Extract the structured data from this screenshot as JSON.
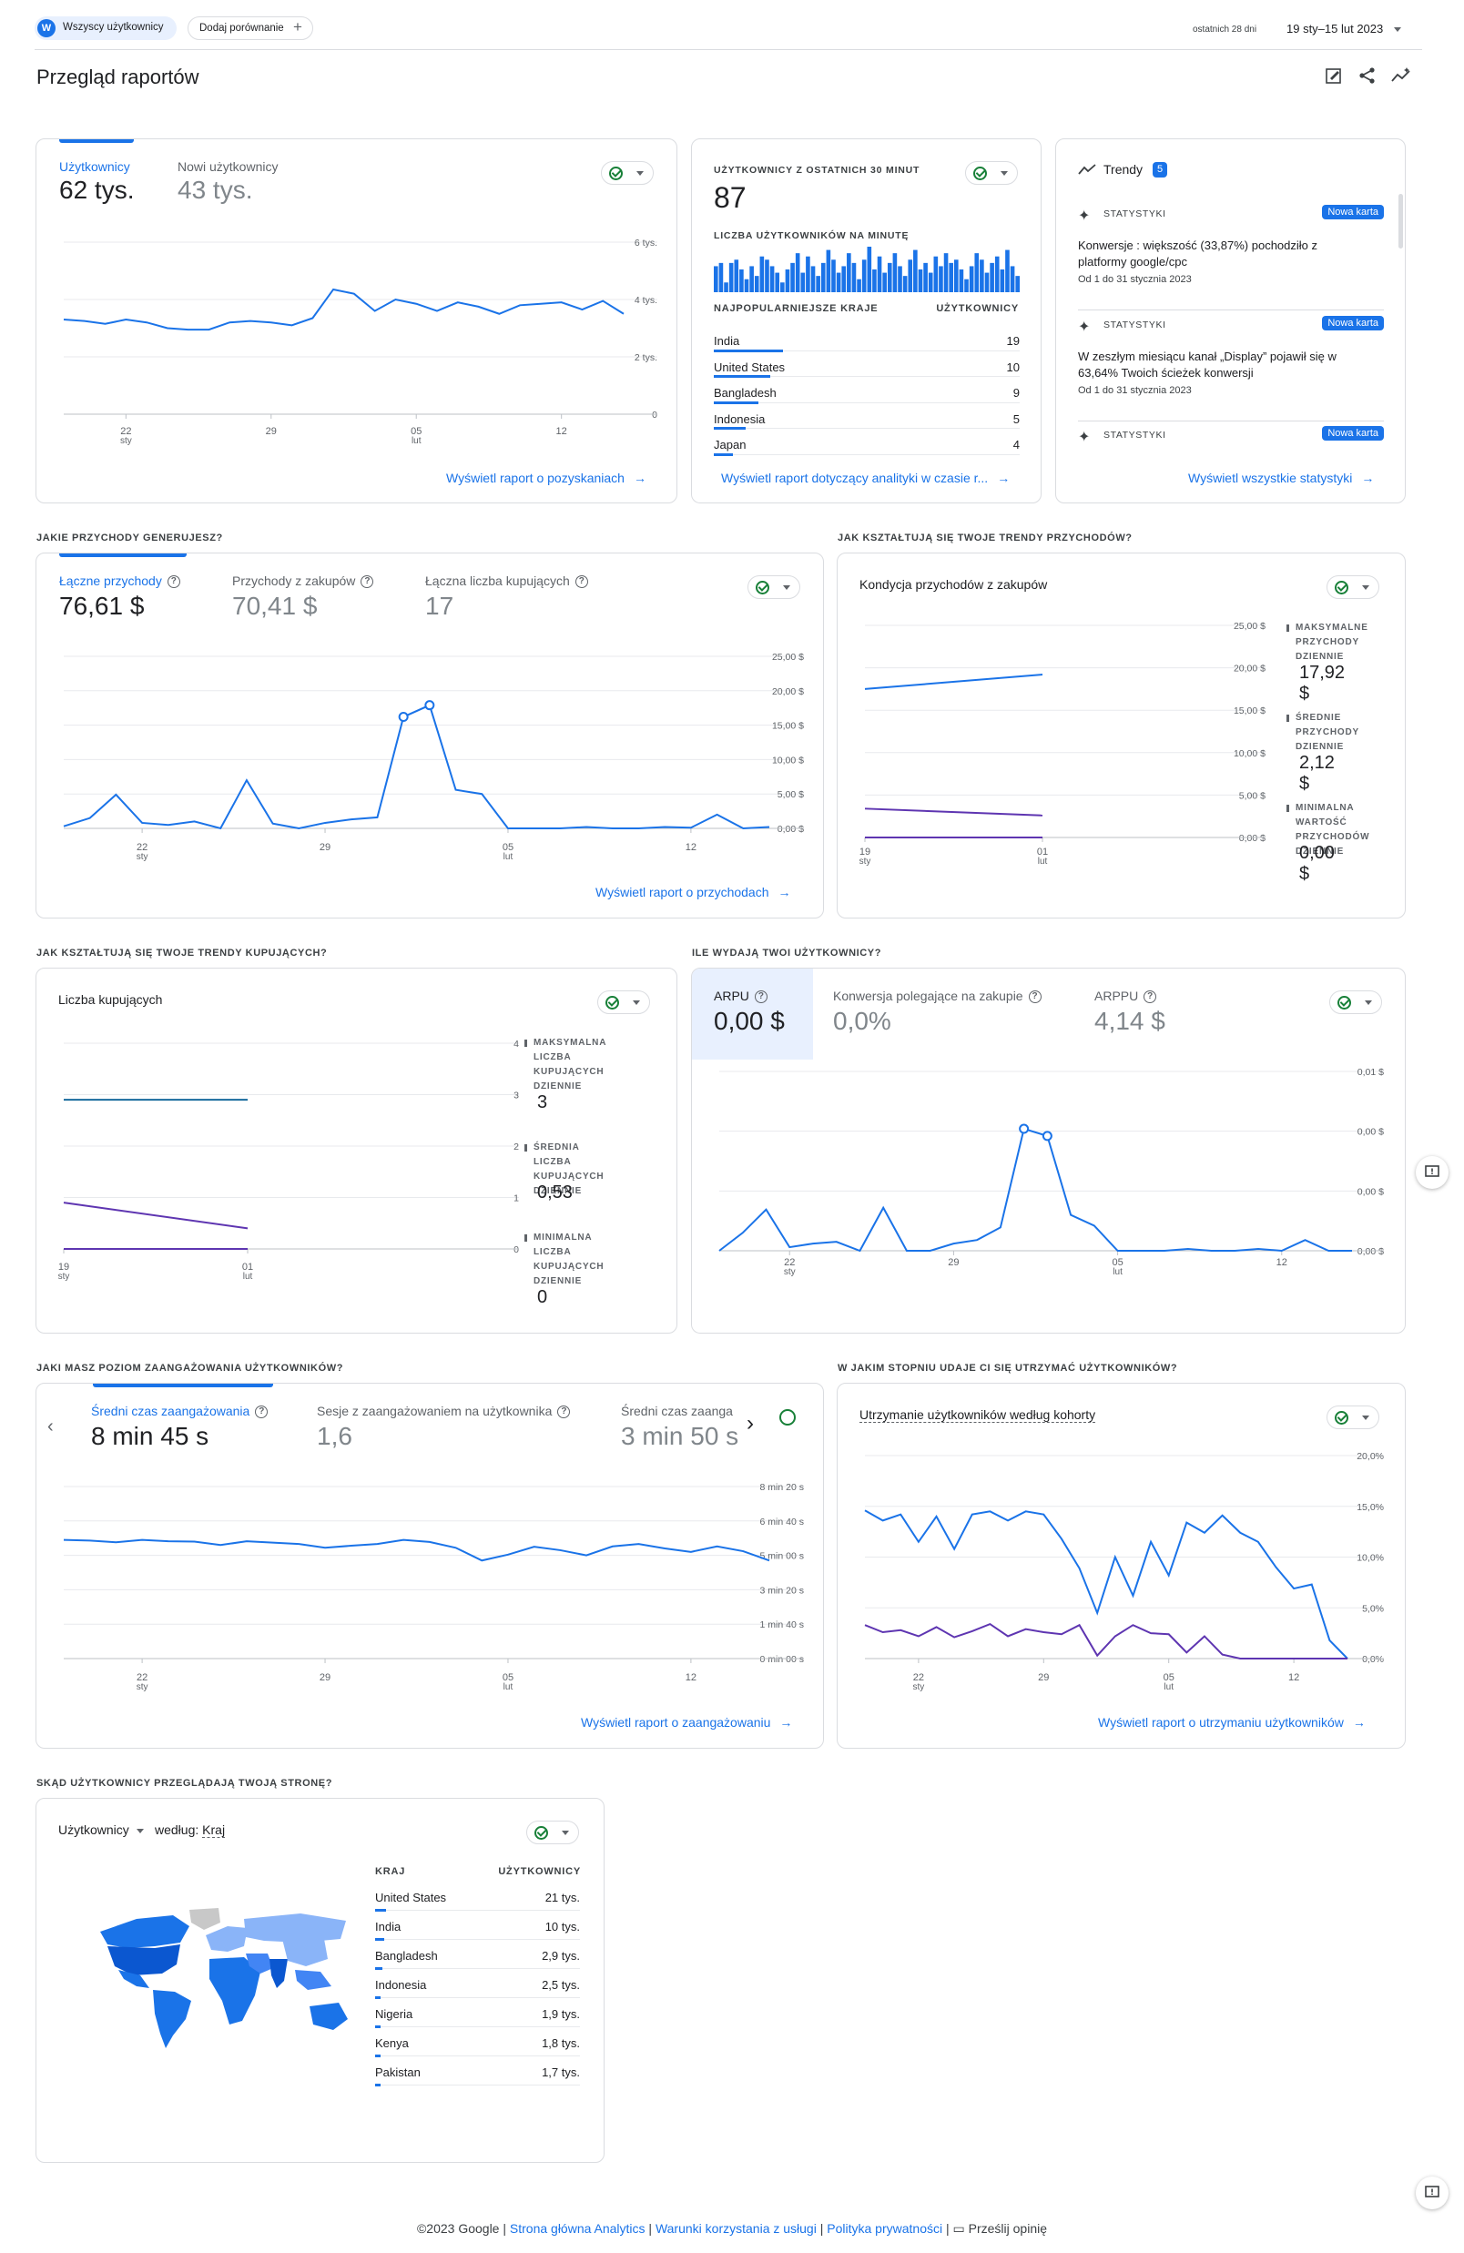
{
  "header": {
    "segment_avatar": "W",
    "segment_label": "Wszyscy użytkownicy",
    "compare_label": "Dodaj porównanie",
    "date_prefix": "ostatnich 28 dni",
    "date_range": "19 sty–15 lut 2023",
    "page_title": "Przegląd raportów",
    "icons": [
      "edit-report-icon",
      "share-icon",
      "insights-icon"
    ]
  },
  "acquisition": {
    "metrics": [
      {
        "label": "Użytkownicy",
        "value": "62 tys."
      },
      {
        "label": "Nowi użytkownicy",
        "value": "43 tys."
      }
    ],
    "y_ticks": [
      "6 tys.",
      "4 tys.",
      "2 tys.",
      "0"
    ],
    "x_ticks": [
      {
        "d": "22",
        "m": "sty"
      },
      {
        "d": "29",
        "m": ""
      },
      {
        "d": "05",
        "m": "lut"
      },
      {
        "d": "12",
        "m": ""
      }
    ],
    "link": "Wyświetl raport o pozyskaniach"
  },
  "realtime": {
    "title": "UŻYTKOWNICY Z OSTATNICH 30 MINUT",
    "value": "87",
    "per_minute_label": "LICZBA UŻYTKOWNIKÓW NA MINUTĘ",
    "col_country": "NAJPOPULARNIEJSZE KRAJE",
    "col_users": "UŻYTKOWNICY",
    "rows": [
      {
        "country": "India",
        "users": "19"
      },
      {
        "country": "United States",
        "users": "10"
      },
      {
        "country": "Bangladesh",
        "users": "9"
      },
      {
        "country": "Indonesia",
        "users": "5"
      },
      {
        "country": "Japan",
        "users": "4"
      }
    ],
    "link": "Wyświetl raport dotyczący analityki w czasie r..."
  },
  "insights": {
    "title": "Trendy",
    "count": "5",
    "cards": [
      {
        "tag": "STATYSTYKI",
        "badge": "Nowa karta",
        "text": "Konwersje : większość (33,87%) pochodziło z platformy google/cpc",
        "date": "Od 1 do 31 stycznia 2023"
      },
      {
        "tag": "STATYSTYKI",
        "badge": "Nowa karta",
        "text": "W zeszłym miesiącu kanał „Display” pojawił się w 63,64% Twoich ścieżek konwersji",
        "date": "Od 1 do 31 stycznia 2023"
      },
      {
        "tag": "STATYSTYKI",
        "badge": "Nowa karta",
        "text": "",
        "date": ""
      }
    ],
    "link": "Wyświetl wszystkie statystyki"
  },
  "revenue": {
    "section_title": "JAKIE PRZYCHODY GENERUJESZ?",
    "metrics": [
      {
        "label": "Łączne przychody",
        "value": "76,61 $"
      },
      {
        "label": "Przychody z zakupów",
        "value": "70,41 $"
      },
      {
        "label": "Łączna liczba kupujących",
        "value": "17"
      }
    ],
    "y_ticks": [
      "25,00 $",
      "20,00 $",
      "15,00 $",
      "10,00 $",
      "5,00 $",
      "0,00 $"
    ],
    "x_ticks": [
      {
        "d": "22",
        "m": "sty"
      },
      {
        "d": "29",
        "m": ""
      },
      {
        "d": "05",
        "m": "lut"
      },
      {
        "d": "12",
        "m": ""
      }
    ],
    "link": "Wyświetl raport o przychodach"
  },
  "revenue_trends": {
    "section_title": "JAK KSZTAŁTUJĄ SIĘ TWOJE TRENDY PRZYCHODÓW?",
    "chart_title": "Kondycja przychodów z zakupów",
    "y_ticks": [
      "25,00 $",
      "20,00 $",
      "15,00 $",
      "10,00 $",
      "5,00 $",
      "0,00 $"
    ],
    "x_ticks": [
      {
        "d": "19",
        "m": "sty"
      },
      {
        "d": "01",
        "m": "lut"
      }
    ],
    "stats": [
      {
        "label": "MAKSYMALNE PRZYCHODY DZIENNIE",
        "value": "17,92 $"
      },
      {
        "label": "ŚREDNIE PRZYCHODY DZIENNIE",
        "value": "2,12 $"
      },
      {
        "label": "MINIMALNA WARTOŚĆ PRZYCHODÓW DZIENNIE",
        "value": "0,00 $"
      }
    ]
  },
  "buyer_trends": {
    "section_title": "JAK KSZTAŁTUJĄ SIĘ TWOJE TRENDY KUPUJĄCYCH?",
    "chart_title": "Liczba kupujących",
    "y_ticks": [
      "4",
      "3",
      "2",
      "1",
      "0"
    ],
    "x_ticks": [
      {
        "d": "19",
        "m": "sty"
      },
      {
        "d": "01",
        "m": "lut"
      }
    ],
    "stats": [
      {
        "label": "MAKSYMALNA LICZBA KUPUJĄCYCH DZIENNIE",
        "value": "3"
      },
      {
        "label": "ŚREDNIA LICZBA KUPUJĄCYCH DZIENNIE",
        "value": "0,53"
      },
      {
        "label": "MINIMALNA LICZBA KUPUJĄCYCH DZIENNIE",
        "value": "0"
      }
    ]
  },
  "spend": {
    "section_title": "ILE WYDAJĄ TWOI UŻYTKOWNICY?",
    "metrics": [
      {
        "label": "ARPU",
        "value": "0,00 $"
      },
      {
        "label": "Konwersja polegające na zakupie",
        "value": "0,0%"
      },
      {
        "label": "ARPPU",
        "value": "4,14 $"
      }
    ],
    "y_ticks": [
      "0,01 $",
      "0,00 $",
      "0,00 $",
      "0,00 $"
    ],
    "x_ticks": [
      {
        "d": "22",
        "m": "sty"
      },
      {
        "d": "29",
        "m": ""
      },
      {
        "d": "05",
        "m": "lut"
      },
      {
        "d": "12",
        "m": ""
      }
    ]
  },
  "engagement": {
    "section_title": "JAKI MASZ POZIOM ZAANGAŻOWANIA UŻYTKOWNIKÓW?",
    "metrics": [
      {
        "label": "Średni czas zaangażowania",
        "value": "8 min 45 s"
      },
      {
        "label": "Sesje z zaangażowaniem na użytkownika",
        "value": "1,6"
      },
      {
        "label": "Średni czas zaanga",
        "value": "3 min 50 s"
      }
    ],
    "y_ticks": [
      "8 min 20 s",
      "6 min 40 s",
      "5 min 00 s",
      "3 min 20 s",
      "1 min 40 s",
      "0 min 00 s"
    ],
    "x_ticks": [
      {
        "d": "22",
        "m": "sty"
      },
      {
        "d": "29",
        "m": ""
      },
      {
        "d": "05",
        "m": "lut"
      },
      {
        "d": "12",
        "m": ""
      }
    ],
    "link": "Wyświetl raport o zaangażowaniu"
  },
  "retention": {
    "section_title": "W JAKIM STOPNIU UDAJE CI SIĘ UTRZYMAĆ UŻYTKOWNIKÓW?",
    "chart_title": "Utrzymanie użytkowników według kohorty",
    "y_ticks": [
      "20,0%",
      "15,0%",
      "10,0%",
      "5,0%",
      "0,0%"
    ],
    "x_ticks": [
      {
        "d": "22",
        "m": "sty"
      },
      {
        "d": "29",
        "m": ""
      },
      {
        "d": "05",
        "m": "lut"
      },
      {
        "d": "12",
        "m": ""
      }
    ],
    "link": "Wyświetl raport o utrzymaniu użytkowników"
  },
  "geo": {
    "section_title": "SKĄD UŻYTKOWNICY PRZEGLĄDAJĄ TWOJĄ STRONĘ?",
    "metric": "Użytkownicy",
    "by_label": "według:",
    "by_value": "Kraj",
    "col_country": "KRAJ",
    "col_users": "UŻYTKOWNICY",
    "rows": [
      {
        "country": "United States",
        "users": "21 tys."
      },
      {
        "country": "India",
        "users": "10 tys."
      },
      {
        "country": "Bangladesh",
        "users": "2,9 tys."
      },
      {
        "country": "Indonesia",
        "users": "2,5 tys."
      },
      {
        "country": "Nigeria",
        "users": "1,9 tys."
      },
      {
        "country": "Kenya",
        "users": "1,8 tys."
      },
      {
        "country": "Pakistan",
        "users": "1,7 tys."
      }
    ]
  },
  "footer": {
    "copyright": "©2023 Google",
    "links": [
      "Strona główna Analytics",
      "Warunki korzystania z usługi",
      "Polityka prywatności"
    ],
    "feedback": "Prześlij opinię"
  },
  "chart_data": [
    {
      "type": "line",
      "x": [
        "19 sty",
        "20 sty",
        "21 sty",
        "22 sty",
        "23 sty",
        "24 sty",
        "25 sty",
        "26 sty",
        "27 sty",
        "28 sty",
        "29 sty",
        "30 sty",
        "31 sty",
        "01 lut",
        "02 lut",
        "03 lut",
        "04 lut",
        "05 lut",
        "06 lut",
        "07 lut",
        "08 lut",
        "09 lut",
        "10 lut",
        "11 lut",
        "12 lut",
        "13 lut",
        "14 lut",
        "15 lut"
      ],
      "series": [
        {
          "name": "Użytkownicy",
          "values": [
            3300,
            3250,
            3150,
            3300,
            3200,
            3000,
            2950,
            2950,
            3200,
            3250,
            3200,
            3100,
            3350,
            4350,
            4200,
            3600,
            4000,
            3850,
            3600,
            3900,
            3750,
            3500,
            3800,
            3850,
            3900,
            3650,
            3950,
            3500
          ]
        }
      ],
      "ylim": [
        0,
        6000
      ]
    },
    {
      "type": "bar",
      "values": [
        8,
        9,
        3,
        9,
        10,
        7,
        4,
        8,
        5,
        11,
        10,
        8,
        6,
        3,
        7,
        9,
        12,
        6,
        11,
        8,
        5,
        9,
        13,
        10,
        6,
        8,
        12,
        9,
        4,
        10,
        14,
        7,
        11,
        6,
        9,
        12,
        8,
        5,
        10,
        13,
        7,
        9,
        6,
        11,
        8,
        12,
        9,
        10,
        7,
        4,
        8,
        12,
        10,
        6,
        9,
        11,
        7,
        13,
        8,
        5
      ]
    },
    {
      "type": "line",
      "x": [
        "19 sty",
        "20 sty",
        "21 sty",
        "22 sty",
        "23 sty",
        "24 sty",
        "25 sty",
        "26 sty",
        "27 sty",
        "28 sty",
        "29 sty",
        "30 sty",
        "31 sty",
        "01 lut",
        "02 lut",
        "03 lut",
        "04 lut",
        "05 lut",
        "06 lut",
        "07 lut",
        "08 lut",
        "09 lut",
        "10 lut",
        "11 lut",
        "12 lut",
        "13 lut",
        "14 lut",
        "15 lut"
      ],
      "series": [
        {
          "name": "Łączne przychody",
          "values": [
            0.3,
            1.5,
            4.9,
            0.8,
            0.5,
            1.0,
            0,
            7.0,
            0.7,
            0,
            0.8,
            1.3,
            1.6,
            16.2,
            17.9,
            5.6,
            5.0,
            0,
            0,
            0,
            0.2,
            0,
            0,
            0.2,
            0.1,
            2.0,
            0,
            0.2
          ]
        }
      ],
      "ylim": [
        0,
        25
      ]
    },
    {
      "type": "line",
      "x": [
        "19 sty",
        "01 lut"
      ],
      "series": [
        {
          "values": [
            17.5,
            19.2
          ]
        },
        {
          "values": [
            3.4,
            2.6
          ]
        },
        {
          "values": [
            0.0,
            0.0
          ]
        }
      ],
      "ylim": [
        0,
        25
      ]
    },
    {
      "type": "line",
      "x": [
        "19 sty",
        "01 lut"
      ],
      "series": [
        {
          "values": [
            2.9,
            2.9
          ]
        },
        {
          "values": [
            0.9,
            0.4
          ]
        },
        {
          "values": [
            0.0,
            0.0
          ]
        }
      ],
      "ylim": [
        0,
        4
      ]
    },
    {
      "type": "line",
      "x": [
        "19 sty",
        "20 sty",
        "21 sty",
        "22 sty",
        "23 sty",
        "24 sty",
        "25 sty",
        "26 sty",
        "27 sty",
        "28 sty",
        "29 sty",
        "30 sty",
        "31 sty",
        "01 lut",
        "02 lut",
        "03 lut",
        "04 lut",
        "05 lut",
        "06 lut",
        "07 lut",
        "08 lut",
        "09 lut",
        "10 lut",
        "11 lut",
        "12 lut",
        "13 lut",
        "14 lut",
        "15 lut"
      ],
      "series": [
        {
          "name": "ARPU",
          "values": [
            0,
            0.001,
            0.0023,
            0.0002,
            0.0004,
            0.0005,
            0,
            0.0024,
            0,
            0,
            0.0004,
            0.0006,
            0.0013,
            0.0068,
            0.0064,
            0.002,
            0.0014,
            0,
            0,
            0,
            0.0001,
            0,
            0,
            0.0001,
            0,
            0.0006,
            0,
            0
          ]
        }
      ],
      "ylim": [
        0,
        0.01
      ]
    },
    {
      "type": "line",
      "x": [
        "19 sty",
        "20 sty",
        "21 sty",
        "22 sty",
        "23 sty",
        "24 sty",
        "25 sty",
        "26 sty",
        "27 sty",
        "28 sty",
        "29 sty",
        "30 sty",
        "31 sty",
        "01 lut",
        "02 lut",
        "03 lut",
        "04 lut",
        "05 lut",
        "06 lut",
        "07 lut",
        "08 lut",
        "09 lut",
        "10 lut",
        "11 lut",
        "12 lut",
        "13 lut",
        "14 lut",
        "15 lut"
      ],
      "series": [
        {
          "name": "Średni czas zaangażowania",
          "values": [
            345,
            343,
            338,
            345,
            341,
            340,
            330,
            341,
            337,
            333,
            322,
            328,
            333,
            345,
            339,
            322,
            285,
            302,
            325,
            315,
            300,
            326,
            333,
            320,
            310,
            326,
            312,
            285
          ]
        }
      ],
      "ylim": [
        0,
        500
      ]
    },
    {
      "type": "line",
      "x": [
        "19 sty",
        "20 sty",
        "21 sty",
        "22 sty",
        "23 sty",
        "24 sty",
        "25 sty",
        "26 sty",
        "27 sty",
        "28 sty",
        "29 sty",
        "30 sty",
        "31 sty",
        "01 lut",
        "02 lut",
        "03 lut",
        "04 lut",
        "05 lut",
        "06 lut",
        "07 lut",
        "08 lut",
        "09 lut",
        "10 lut",
        "11 lut",
        "12 lut",
        "13 lut",
        "14 lut",
        "15 lut"
      ],
      "series": [
        {
          "values": [
            14.6,
            13.6,
            14.2,
            11.5,
            14.0,
            10.8,
            14.2,
            14.5,
            13.6,
            14.5,
            14.2,
            11.8,
            8.9,
            4.5,
            10.0,
            6.2,
            11.5,
            8.2,
            13.4,
            12.4,
            14.1,
            12.4,
            11.5,
            9.0,
            6.9,
            7.3,
            1.8,
            0
          ]
        },
        {
          "values": [
            3.3,
            2.6,
            2.8,
            2.2,
            3.1,
            2.1,
            2.7,
            3.4,
            2.2,
            2.9,
            2.6,
            2.4,
            3.3,
            0.3,
            2.2,
            3.3,
            2.5,
            2.4,
            0.6,
            2.2,
            0.4,
            0,
            0,
            0,
            0,
            0,
            0,
            0
          ]
        }
      ],
      "ylim": [
        0,
        20
      ]
    }
  ]
}
